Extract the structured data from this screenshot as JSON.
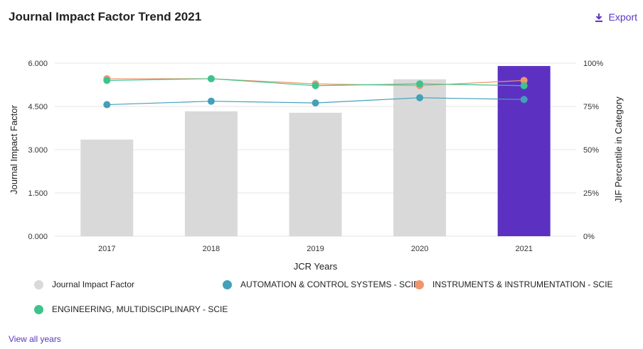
{
  "header": {
    "title": "Journal Impact Factor Trend 2021",
    "export_label": "Export",
    "export_icon": "download-icon"
  },
  "footer": {
    "view_all_label": "View all years"
  },
  "colors": {
    "bar": "#d9d9d9",
    "bar_highlight": "#5c31c2",
    "automation": "#43a0b8",
    "instruments": "#f2956b",
    "engineering": "#3cc48c",
    "accent": "#5c35c2"
  },
  "chart_data": {
    "type": "bar",
    "categories": [
      "2017",
      "2018",
      "2019",
      "2020",
      "2021"
    ],
    "xlabel": "JCR Years",
    "ylabel": "Journal Impact Factor",
    "y2label": "JIF Percentile in Category",
    "ylim": [
      0,
      6
    ],
    "y2lim": [
      0,
      100
    ],
    "yticks": [
      "0.000",
      "1.500",
      "3.000",
      "4.500",
      "6.000"
    ],
    "y2ticks": [
      "0%",
      "25%",
      "50%",
      "75%",
      "100%"
    ],
    "grid": true,
    "legend_position": "bottom",
    "series": [
      {
        "name": "Journal Impact Factor",
        "kind": "bar",
        "axis": "left",
        "values": [
          3.35,
          4.33,
          4.28,
          5.44,
          5.9
        ],
        "highlight_index": 4
      },
      {
        "name": "AUTOMATION & CONTROL SYSTEMS - SCIE",
        "kind": "line",
        "axis": "right",
        "values": [
          76,
          78,
          77,
          80,
          79
        ]
      },
      {
        "name": "INSTRUMENTS & INSTRUMENTATION - SCIE",
        "kind": "line",
        "axis": "right",
        "values": [
          91,
          91,
          88,
          87,
          90
        ]
      },
      {
        "name": "ENGINEERING, MULTIDISCIPLINARY - SCIE",
        "kind": "line",
        "axis": "right",
        "values": [
          90,
          91,
          87,
          88,
          87
        ]
      }
    ]
  }
}
